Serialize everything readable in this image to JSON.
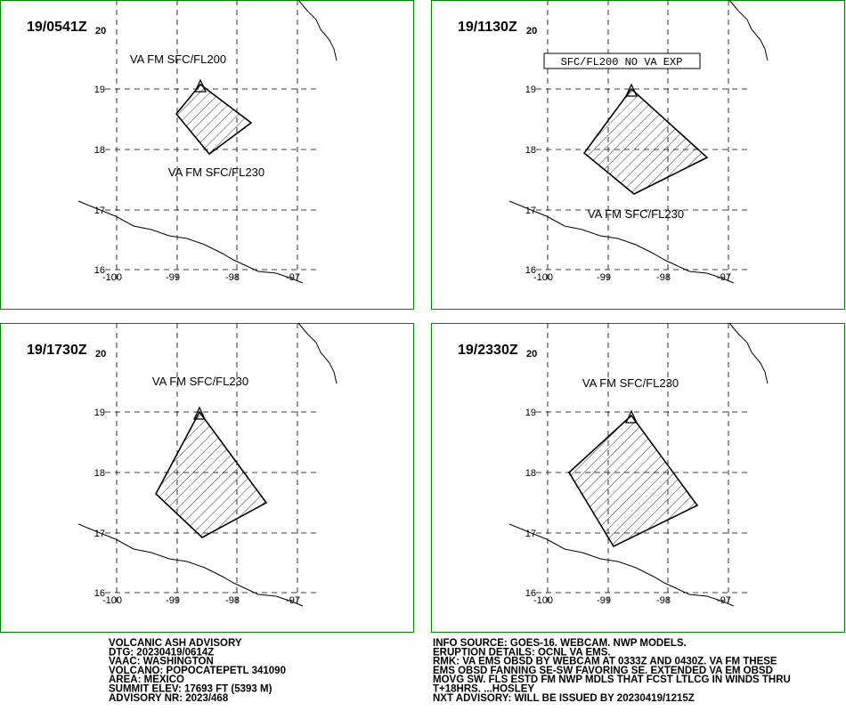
{
  "panels": [
    {
      "time": "19/0541Z",
      "day": "20",
      "labels": [
        "VA FM SFC/FL200",
        "VA FM SFC/FL230"
      ],
      "lat_labels": [
        "19",
        "18",
        "17",
        "16"
      ],
      "lon_labels": [
        "-100",
        "-99",
        "-98",
        "-97"
      ]
    },
    {
      "time": "19/1130Z",
      "day": "20",
      "box_label": "SFC/FL200 NO VA EXP",
      "labels": [
        "VA FM SFC/FL230"
      ],
      "lat_labels": [
        "19",
        "18",
        "17",
        "16"
      ],
      "lon_labels": [
        "-100",
        "-99",
        "-98",
        "-97"
      ]
    },
    {
      "time": "19/1730Z",
      "day": "20",
      "labels": [
        "VA FM SFC/FL230"
      ],
      "lat_labels": [
        "19",
        "18",
        "17",
        "16"
      ],
      "lon_labels": [
        "-100",
        "-99",
        "-98",
        "-97"
      ]
    },
    {
      "time": "19/2330Z",
      "day": "20",
      "labels": [
        "VA FM SFC/FL230"
      ],
      "lat_labels": [
        "19",
        "18",
        "17",
        "16"
      ],
      "lon_labels": [
        "-100",
        "-99",
        "-98",
        "-97"
      ]
    }
  ],
  "advisory_left": [
    "VOLCANIC ASH ADVISORY",
    "DTG: 20230419/0614Z",
    "VAAC: WASHINGTON",
    "VOLCANO: POPOCATEPETL 341090",
    "AREA: MEXICO",
    "SUMMIT ELEV: 17693 FT (5393 M)",
    "ADVISORY NR: 2023/468"
  ],
  "advisory_right": [
    "INFO SOURCE: GOES-16. WEBCAM. NWP MODELS.",
    "ERUPTION DETAILS: OCNL VA EMS.",
    "RMK: VA EMS OBSD BY WEBCAM AT 0333Z AND 0430Z. VA FM THESE",
    "EMS OBSD FANNING SE-SW FAVORING SE. EXTENDED VA EM OBSD",
    "MOVG SW. FLS ESTD FM NWP MDLS THAT FCST LTLCG IN WINDS THRU",
    "T+18HRS. ...HOSLEY",
    "NXT ADVISORY: WILL BE ISSUED BY 20230419/1215Z"
  ]
}
